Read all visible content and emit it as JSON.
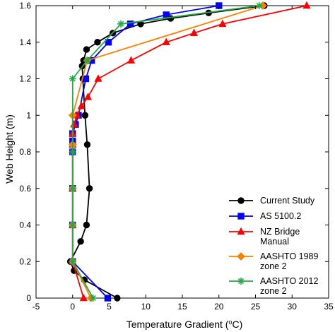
{
  "chart_data": {
    "type": "line",
    "xlabel": "Temperature Gradient (°C)",
    "xlabel_parts": {
      "prefix": "Temperature Gradient (",
      "sup": "o",
      "suffix": "C)"
    },
    "ylabel": "Web Height (m)",
    "xlim": [
      -5,
      35
    ],
    "ylim": [
      0,
      1.6
    ],
    "xticks": [
      "-5",
      "0",
      "5",
      "10",
      "15",
      "20",
      "25",
      "30",
      "35"
    ],
    "yticks": [
      "0",
      "0.2",
      "0.4",
      "0.6",
      "0.8",
      "1",
      "1.2",
      "1.4",
      "1.6"
    ],
    "legend_position": "bottom-right",
    "grid": false,
    "series": [
      {
        "name": "Current Study",
        "name_lines": [
          "Current Study"
        ],
        "color": "#000000",
        "marker": "circle",
        "x": [
          6.1,
          1.6,
          0.2,
          -0.3,
          1.1,
          1.9,
          2.3,
          2.0,
          1.7,
          1.4,
          1.3,
          1.5,
          1.9,
          3.4,
          5.5,
          9.3,
          13.4,
          18.6,
          26.2
        ],
        "y": [
          0.0,
          0.1,
          0.15,
          0.2,
          0.31,
          0.4,
          0.6,
          0.84,
          1.0,
          1.2,
          1.27,
          1.3,
          1.36,
          1.4,
          1.45,
          1.5,
          1.53,
          1.56,
          1.6
        ]
      },
      {
        "name": "AS 5100.2",
        "name_lines": [
          "AS 5100.2"
        ],
        "color": "#0000ff",
        "marker": "square",
        "x": [
          4.8,
          0.0,
          0.0,
          0.0,
          0.0,
          0.0,
          0.0,
          0.4,
          0.8,
          1.8,
          2.6,
          4.9,
          7.9,
          12.8,
          20.0
        ],
        "y": [
          0.0,
          0.2,
          0.4,
          0.6,
          0.8,
          0.86,
          0.9,
          0.95,
          1.0,
          1.2,
          1.3,
          1.4,
          1.5,
          1.55,
          1.6
        ]
      },
      {
        "name": "NZ Bridge Manual",
        "name_lines": [
          "NZ Bridge",
          "Manual"
        ],
        "color": "#ff0000",
        "marker": "triangle",
        "x": [
          1.5,
          0.0,
          0.0,
          0.0,
          0.0,
          0.0,
          0.2,
          0.6,
          1.2,
          2.1,
          3.5,
          8.0,
          12.8,
          16.6,
          20.5,
          32.0
        ],
        "y": [
          0.0,
          0.2,
          0.4,
          0.6,
          0.84,
          0.9,
          0.95,
          1.0,
          1.05,
          1.1,
          1.2,
          1.3,
          1.4,
          1.45,
          1.5,
          1.6
        ]
      },
      {
        "name": "AASHTO 1989 zone 2",
        "name_lines": [
          "AASHTO 1989",
          "zone 2"
        ],
        "color": "#ff8000",
        "marker": "diamond",
        "x": [
          2.5,
          0.0,
          0.0,
          0.0,
          0.0,
          0.0,
          2.0,
          26.0
        ],
        "y": [
          0.0,
          0.2,
          0.4,
          0.6,
          0.84,
          1.0,
          1.3,
          1.6
        ]
      },
      {
        "name": "AASHTO 2012 zone 2",
        "name_lines": [
          "AASHTO 2012",
          "zone 2"
        ],
        "color": "#22aa44",
        "marker": "asterisk",
        "x": [
          2.8,
          0.0,
          0.0,
          0.0,
          0.0,
          0.0,
          2.0,
          6.6,
          25.5
        ],
        "y": [
          0.0,
          0.2,
          0.4,
          0.6,
          0.8,
          1.2,
          1.3,
          1.5,
          1.6
        ]
      }
    ]
  }
}
